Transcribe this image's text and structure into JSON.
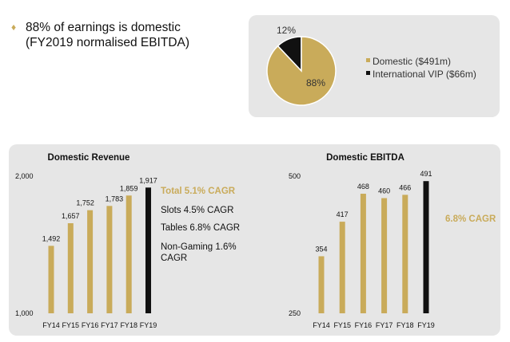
{
  "headline": {
    "line1": "88% of earnings is domestic",
    "line2": "(FY2019 normalised EBITDA)",
    "bullet_color": "#c9ab5a"
  },
  "colors": {
    "gold": "#c9ab5a",
    "black": "#111111",
    "panel": "#e6e6e6"
  },
  "chart_data": [
    {
      "type": "pie",
      "slices": [
        {
          "label": "Domestic ($491m)",
          "value": 88,
          "display": "88%",
          "color": "#c9ab5a"
        },
        {
          "label": "International VIP ($66m)",
          "value": 12,
          "display": "12%",
          "color": "#111111"
        }
      ],
      "legend": "right"
    },
    {
      "type": "bar",
      "title": "Domestic Revenue",
      "categories": [
        "FY14",
        "FY15",
        "FY16",
        "FY17",
        "FY18",
        "FY19"
      ],
      "values": [
        1492,
        1657,
        1752,
        1783,
        1859,
        1917
      ],
      "labels": [
        "1,492",
        "1,657",
        "1,752",
        "1,783",
        "1,859",
        "1,917"
      ],
      "bar_colors": [
        "#c9ab5a",
        "#c9ab5a",
        "#c9ab5a",
        "#c9ab5a",
        "#c9ab5a",
        "#111111"
      ],
      "ylim": [
        1000,
        2000
      ],
      "ytick_labels": [
        "1,000",
        "2,000"
      ],
      "notes": [
        {
          "text": "Total 5.1% CAGR",
          "highlight": true
        },
        {
          "text": "Slots 4.5% CAGR",
          "highlight": false
        },
        {
          "text": "Tables 6.8% CAGR",
          "highlight": false
        },
        {
          "text": "Non-Gaming 1.6%",
          "highlight": false
        },
        {
          "text": "CAGR",
          "highlight": false
        }
      ]
    },
    {
      "type": "bar",
      "title": "Domestic EBITDA",
      "categories": [
        "FY14",
        "FY15",
        "FY16",
        "FY17",
        "FY18",
        "FY19"
      ],
      "values": [
        354,
        417,
        468,
        460,
        466,
        491
      ],
      "labels": [
        "354",
        "417",
        "468",
        "460",
        "466",
        "491"
      ],
      "bar_colors": [
        "#c9ab5a",
        "#c9ab5a",
        "#c9ab5a",
        "#c9ab5a",
        "#c9ab5a",
        "#111111"
      ],
      "ylim": [
        250,
        500
      ],
      "ytick_labels": [
        "250",
        "500"
      ],
      "notes": [
        {
          "text": "6.8% CAGR",
          "highlight": true
        }
      ]
    }
  ]
}
